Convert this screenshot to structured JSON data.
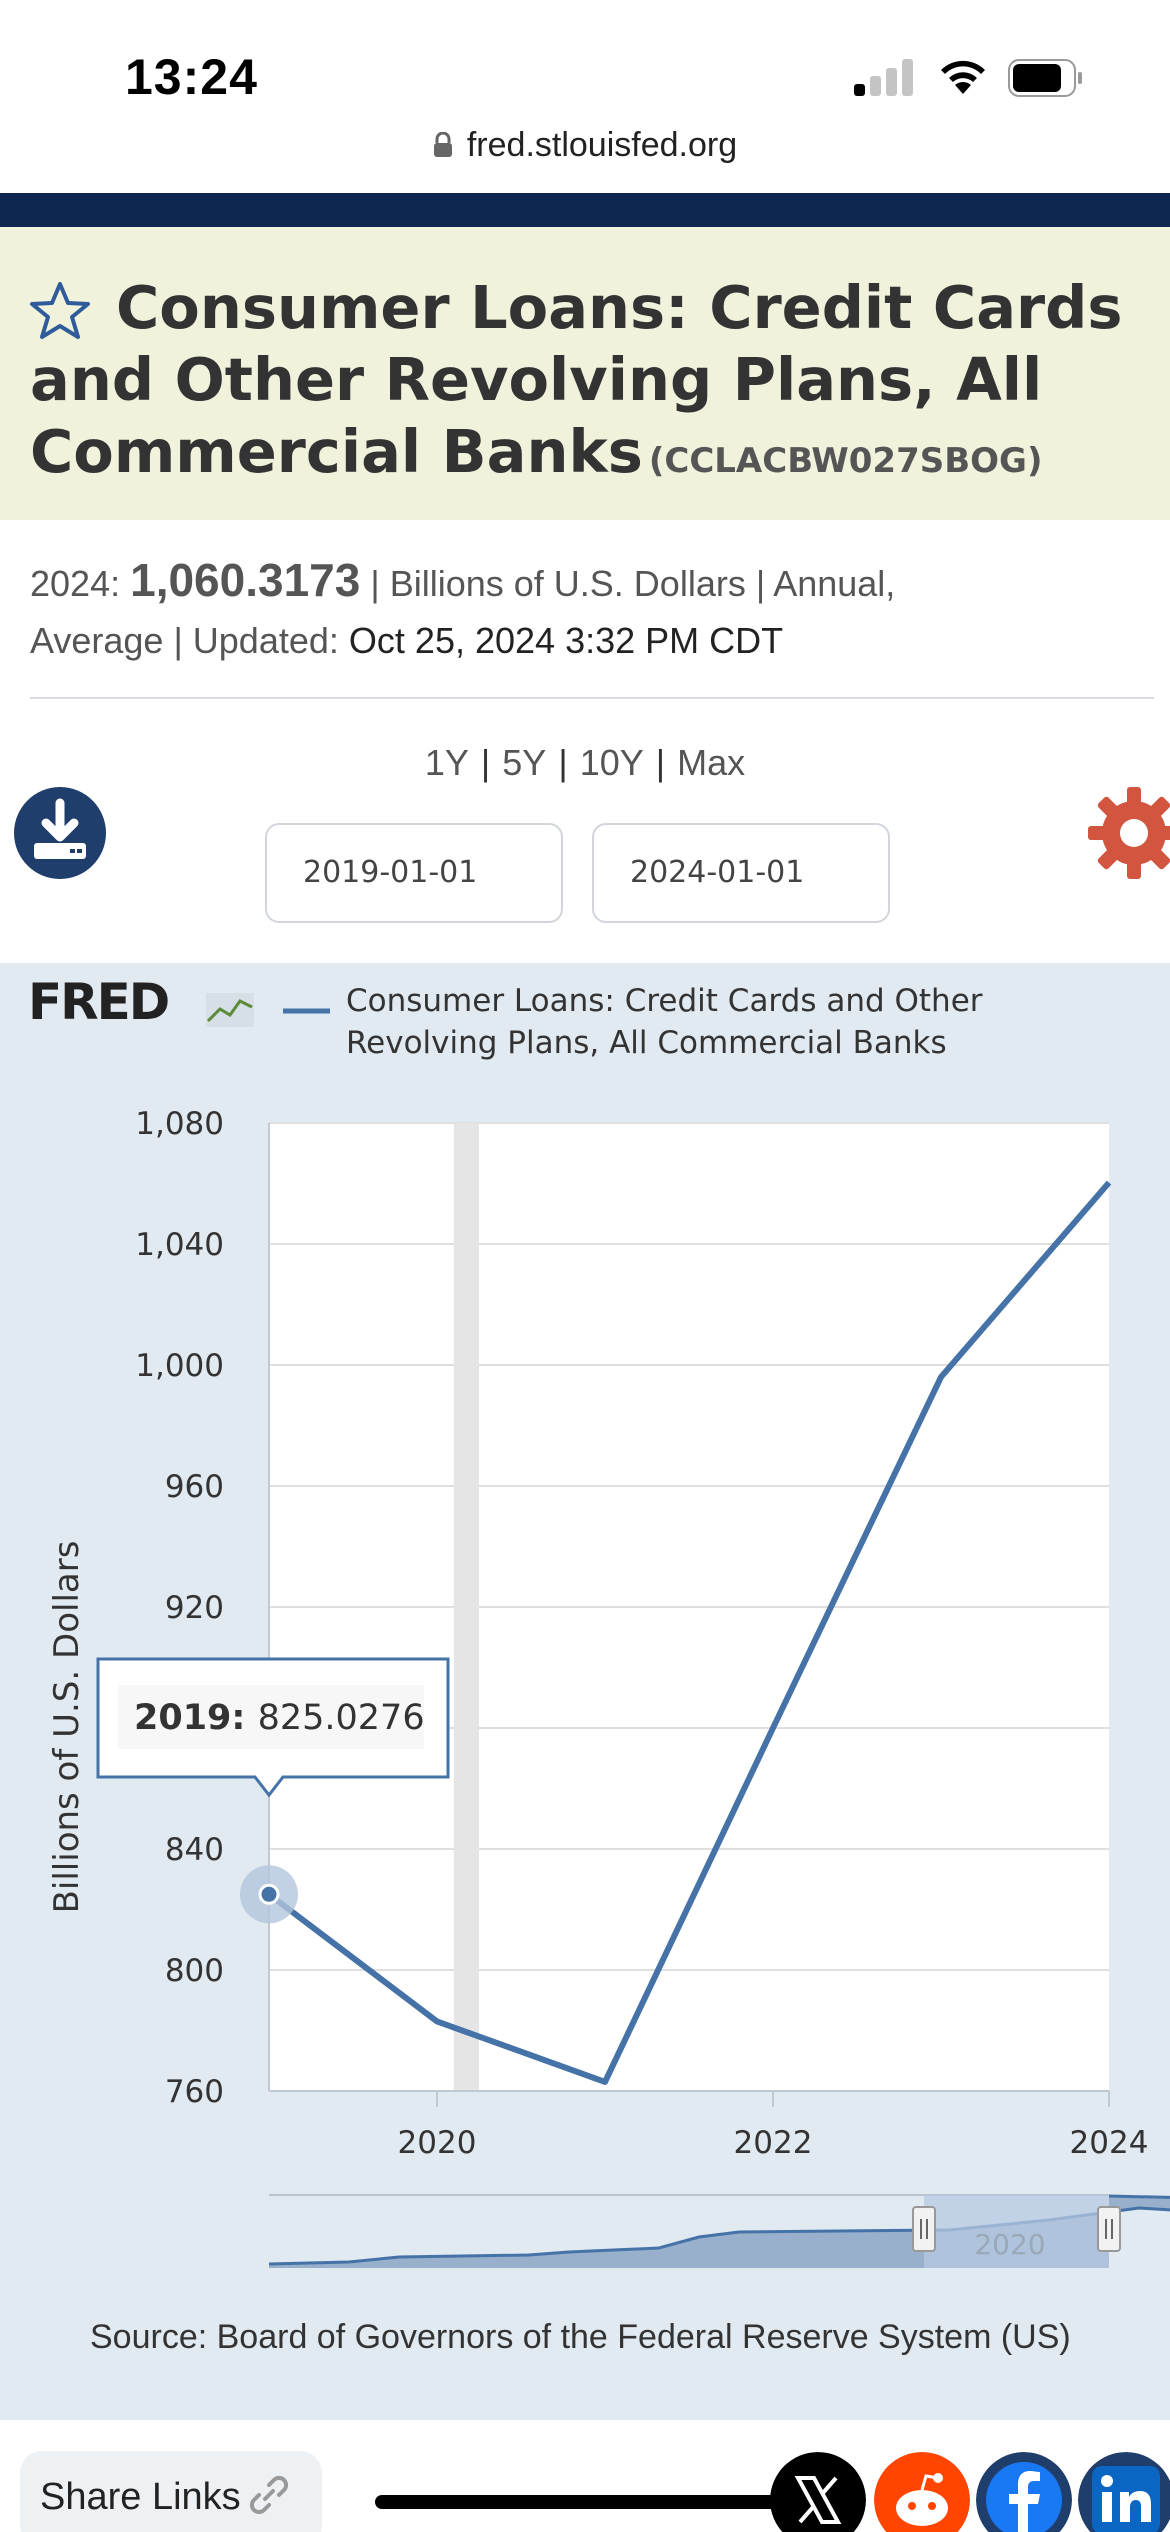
{
  "status": {
    "time": "13:24"
  },
  "browser": {
    "url": "fred.stlouisfed.org"
  },
  "series": {
    "title": "Consumer Loans: Credit Cards and Other Revolving Plans, All Commercial Banks",
    "id": "(CCLACBW027SBOG)"
  },
  "meta": {
    "year_label": "2024:",
    "value": "1,060.3173",
    "units": "| Billions of U.S. Dollars | Annual,",
    "frequency_line": "Average | Updated:",
    "updated": "Oct 25, 2024 3:32 PM CDT"
  },
  "range": {
    "options": [
      "1Y",
      "5Y",
      "10Y",
      "Max"
    ],
    "start_date": "2019-01-01",
    "end_date": "2024-01-01"
  },
  "colors": {
    "navy": "#0c2650",
    "series_line": "#4572a7",
    "recession_band": "#e5e5e5",
    "settings": "#d2553f"
  },
  "chart_data": {
    "type": "line",
    "logo_text": "FRED",
    "legend": [
      "Consumer Loans: Credit Cards and Other",
      "Revolving Plans, All Commercial Banks"
    ],
    "ylabel": "Billions of U.S. Dollars",
    "xlabel": "",
    "ylim": [
      760,
      1080
    ],
    "yticks": [
      760,
      800,
      840,
      880,
      920,
      960,
      1000,
      1040,
      1080
    ],
    "ytick_labels": [
      "760",
      "800",
      "840",
      "",
      "920",
      "960",
      "1,000",
      "1,040",
      "1,080"
    ],
    "xticks": [
      2020,
      2022,
      2024
    ],
    "xtick_labels": [
      "2020",
      "2022",
      "2024"
    ],
    "xlim": [
      2019,
      2024
    ],
    "series": [
      {
        "x": [
          2019,
          2020,
          2021,
          2022,
          2023,
          2024
        ],
        "y": [
          825.0276,
          783,
          763,
          880,
          996,
          1060.3173
        ]
      }
    ],
    "recession": [
      2020.1,
      2020.25
    ],
    "tooltip": {
      "year_label": "2019:",
      "value": "825.0276"
    },
    "navigator_label": "2020"
  },
  "source": "Source: Board of Governors of the Federal Reserve System (US)",
  "share": {
    "label": "Share Links"
  }
}
